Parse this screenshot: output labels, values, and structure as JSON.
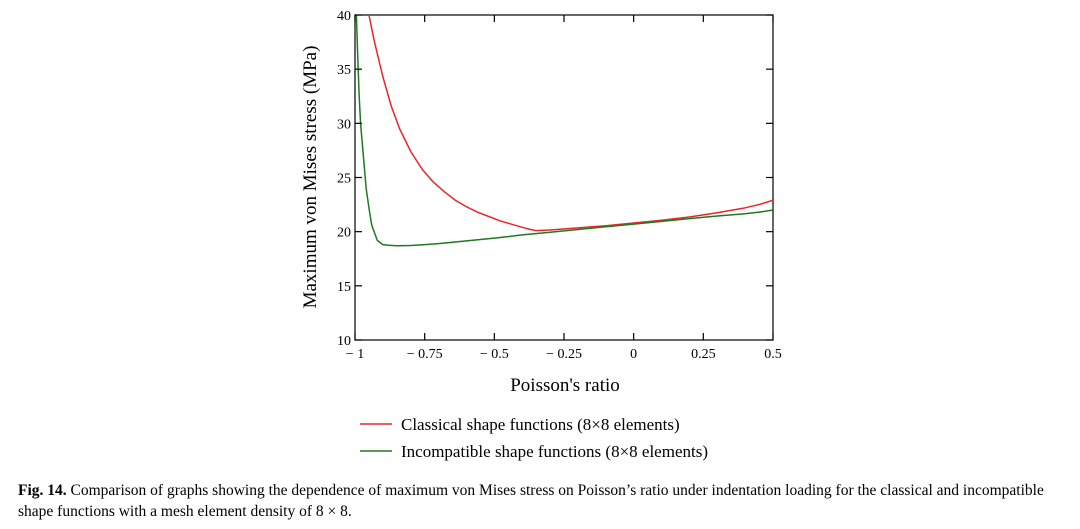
{
  "figure": {
    "caption_label": "Fig. 14.",
    "caption_text": "Comparison of graphs showing the dependence of maximum von Mises stress on Poisson’s ratio under indentation loading for the classical and incompatible shape functions with a mesh element density of 8 × 8."
  },
  "chart_data": {
    "type": "line",
    "title": "",
    "xlabel": "Poisson's ratio",
    "ylabel": "Maximum von Mises stress (MPa)",
    "xlim": [
      -1,
      0.5
    ],
    "ylim": [
      10,
      40
    ],
    "x_ticks": [
      -1,
      -0.75,
      -0.5,
      -0.25,
      0,
      0.25,
      0.5
    ],
    "x_tick_labels": [
      "− 1",
      "− 0.75",
      "− 0.5",
      "− 0.25",
      "0",
      "0.25",
      "0.5"
    ],
    "y_ticks": [
      10,
      15,
      20,
      25,
      30,
      35,
      40
    ],
    "y_tick_labels": [
      "10",
      "15",
      "20",
      "25",
      "30",
      "35",
      "40"
    ],
    "grid": false,
    "legend_position": "below",
    "series": [
      {
        "name": "Classical shape functions (8×8 elements)",
        "color": "#e8262a",
        "x": [
          -0.95,
          -0.93,
          -0.9,
          -0.87,
          -0.84,
          -0.8,
          -0.76,
          -0.72,
          -0.68,
          -0.64,
          -0.6,
          -0.56,
          -0.52,
          -0.48,
          -0.44,
          -0.4,
          -0.37,
          -0.35,
          -0.3,
          -0.2,
          -0.1,
          0,
          0.1,
          0.2,
          0.3,
          0.4,
          0.45,
          0.5
        ],
        "y": [
          40,
          37.5,
          34.3,
          31.6,
          29.5,
          27.4,
          25.8,
          24.6,
          23.7,
          22.9,
          22.3,
          21.8,
          21.4,
          21.0,
          20.7,
          20.4,
          20.2,
          20.1,
          20.15,
          20.35,
          20.55,
          20.8,
          21.05,
          21.35,
          21.75,
          22.2,
          22.5,
          22.9
        ]
      },
      {
        "name": "Incompatible shape functions (8×8 elements)",
        "color": "#1e7a1e",
        "x": [
          -0.995,
          -0.99,
          -0.985,
          -0.98,
          -0.97,
          -0.96,
          -0.95,
          -0.94,
          -0.92,
          -0.9,
          -0.88,
          -0.85,
          -0.8,
          -0.75,
          -0.7,
          -0.6,
          -0.5,
          -0.4,
          -0.3,
          -0.2,
          -0.1,
          0,
          0.1,
          0.2,
          0.3,
          0.4,
          0.45,
          0.5
        ],
        "y": [
          40,
          36,
          32.5,
          30,
          27,
          24,
          22.2,
          20.6,
          19.2,
          18.8,
          18.75,
          18.7,
          18.72,
          18.8,
          18.9,
          19.15,
          19.4,
          19.7,
          19.95,
          20.2,
          20.45,
          20.7,
          20.95,
          21.2,
          21.45,
          21.65,
          21.8,
          22.0
        ]
      }
    ]
  }
}
